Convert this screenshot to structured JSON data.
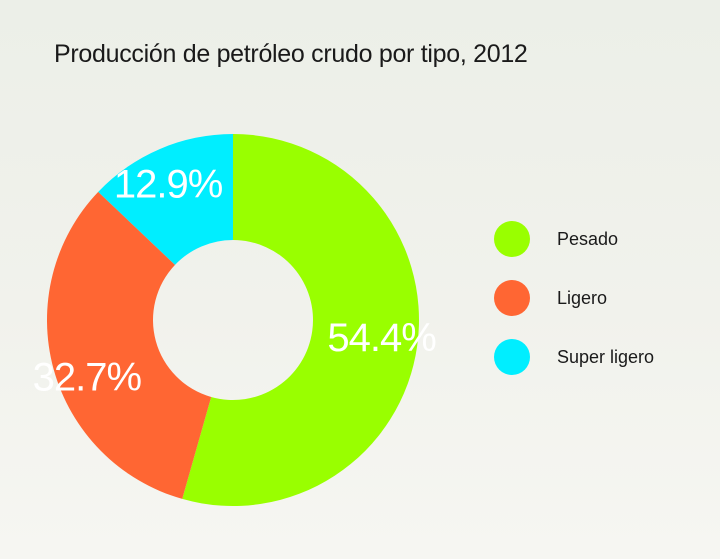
{
  "chart_data": {
    "type": "pie",
    "title": "Producción de petróleo crudo por tipo, 2012",
    "categories": [
      "Pesado",
      "Ligero",
      "Super ligero"
    ],
    "values": [
      54.4,
      32.7,
      12.9
    ],
    "value_labels": [
      "54.4%",
      "32.7%",
      "12.9%"
    ],
    "colors": [
      "#99ff00",
      "#ff6633",
      "#00eeff"
    ],
    "donut": true,
    "legend_position": "right"
  }
}
